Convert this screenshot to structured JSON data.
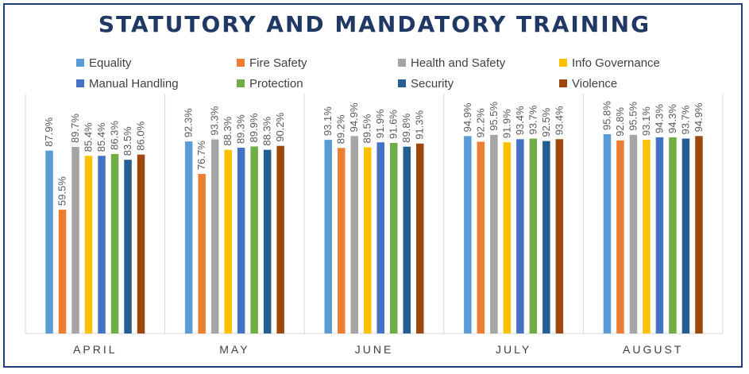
{
  "chart_data": {
    "type": "bar",
    "title": "STATUTORY AND MANDATORY TRAINING",
    "xlabel": "",
    "ylabel": "",
    "ylim": [
      0,
      100
    ],
    "grid": false,
    "legend_position": "top",
    "categories": [
      "APRIL",
      "MAY",
      "JUNE",
      "JULY",
      "AUGUST"
    ],
    "series": [
      {
        "name": "Equality",
        "color": "#5b9bd5",
        "values": [
          87.9,
          92.3,
          93.1,
          94.9,
          95.8
        ],
        "labels": [
          "87.9%",
          "92.3%",
          "93.1%",
          "94.9%",
          "95.8%"
        ]
      },
      {
        "name": "Fire Safety",
        "color": "#ed7d31",
        "values": [
          59.5,
          76.7,
          89.2,
          92.2,
          92.8
        ],
        "labels": [
          "59.5%",
          "76.7%",
          "89.2%",
          "92.2%",
          "92.8%"
        ]
      },
      {
        "name": "Health and Safety",
        "color": "#a5a5a5",
        "values": [
          89.7,
          93.3,
          94.9,
          95.5,
          95.5
        ],
        "labels": [
          "89.7%",
          "93.3%",
          "94.9%",
          "95.5%",
          "95.5%"
        ]
      },
      {
        "name": "Info Governance",
        "color": "#ffc000",
        "values": [
          85.4,
          88.3,
          89.5,
          91.9,
          93.1
        ],
        "labels": [
          "85.4%",
          "88.3%",
          "89.5%",
          "91.9%",
          "93.1%"
        ]
      },
      {
        "name": "Manual Handling",
        "color": "#4472c4",
        "values": [
          85.4,
          89.3,
          91.9,
          93.4,
          94.3
        ],
        "labels": [
          "85.4%",
          "89.3%",
          "91.9%",
          "93.4%",
          "94.3%"
        ]
      },
      {
        "name": "Protection",
        "color": "#70ad47",
        "values": [
          86.3,
          89.9,
          91.6,
          93.7,
          94.3
        ],
        "labels": [
          "86.3%",
          "89.9%",
          "91.6%",
          "93.7%",
          "94.3%"
        ]
      },
      {
        "name": "Security",
        "color": "#255e91",
        "values": [
          83.5,
          88.3,
          89.8,
          92.5,
          93.7
        ],
        "labels": [
          "83.5%",
          "88.3%",
          "89.8%",
          "92.5%",
          "93.7%"
        ]
      },
      {
        "name": "Violence",
        "color": "#9e480e",
        "values": [
          86.0,
          90.2,
          91.3,
          93.4,
          94.9
        ],
        "labels": [
          "86.0%",
          "90.2%",
          "91.3%",
          "93.4%",
          "94.9%"
        ]
      }
    ]
  }
}
